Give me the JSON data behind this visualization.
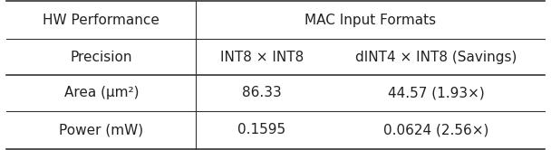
{
  "header_row": [
    "HW Performance",
    "MAC Input Formats"
  ],
  "subheader_row": [
    "Precision",
    "INT8 × INT8",
    "dINT4 × INT8 (Savings)"
  ],
  "data_rows": [
    [
      "Area (μm²)",
      "86.33",
      "44.57 (1.93×)"
    ],
    [
      "Power (mW)",
      "0.1595",
      "0.0624 (2.56×)"
    ]
  ],
  "text_color": "#222222",
  "line_color": "#333333",
  "font_size": 11,
  "col_bounds": [
    0.01,
    0.355,
    0.595,
    0.99
  ],
  "row_tops": [
    1.0,
    0.745,
    0.5,
    0.255,
    0.0
  ],
  "thick_lw": 1.2,
  "thin_lw": 0.8
}
